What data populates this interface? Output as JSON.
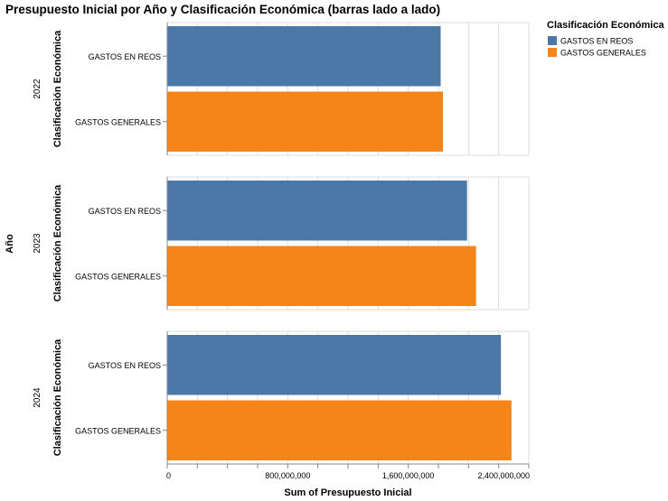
{
  "chart_data": {
    "type": "bar",
    "orientation": "horizontal",
    "title": "Presupuesto Inicial por Año y Clasificación Económica (barras lado a lado)",
    "row_facet_label": "Año",
    "ylabel": "Clasificación Económica",
    "xlabel": "Sum of Presupuesto Inicial",
    "xlim": [
      0,
      2400000000
    ],
    "x_ticks": [
      0,
      800000000,
      1600000000,
      2400000000
    ],
    "x_tick_labels": [
      "0",
      "800,000,000",
      "1,600,000,000",
      "2,400,000,000"
    ],
    "grid": true,
    "legend": {
      "title": "Clasificación Económica",
      "placement": "top-right",
      "entries": [
        {
          "name": "GASTOS EN REOS",
          "color": "#4c78a8"
        },
        {
          "name": "GASTOS GENERALES",
          "color": "#f58518"
        }
      ]
    },
    "categories": [
      "GASTOS EN REOS",
      "GASTOS GENERALES"
    ],
    "facets": [
      {
        "label": "2022",
        "values": [
          1815000000,
          1830000000
        ]
      },
      {
        "label": "2023",
        "values": [
          1990000000,
          2050000000
        ]
      },
      {
        "label": "2024",
        "values": [
          2215000000,
          2285000000
        ]
      }
    ]
  }
}
